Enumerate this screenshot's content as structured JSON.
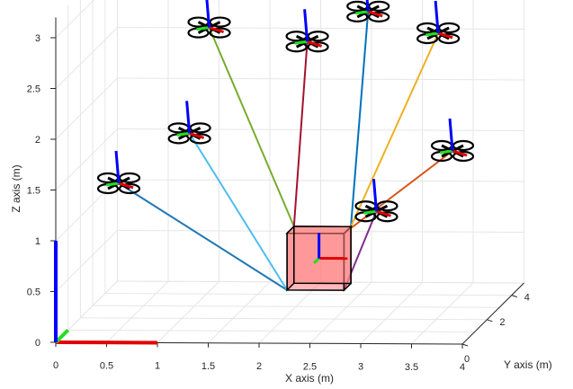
{
  "chart_data": {
    "type": "3d-scene",
    "title": "",
    "xlabel": "X axis (m)",
    "ylabel": "Y axis (m)",
    "zlabel": "Z axis (m)",
    "xlim": [
      0,
      4
    ],
    "ylim": [
      0,
      5
    ],
    "zlim": [
      0,
      3.2
    ],
    "grid": true,
    "x_ticks": [
      "0",
      "0.5",
      "1",
      "1.5",
      "2",
      "2.5",
      "3",
      "3.5",
      "4"
    ],
    "y_ticks": [
      "2",
      "4"
    ],
    "z_ticks": [
      "0",
      "0.5",
      "1",
      "1.5",
      "2",
      "2.5",
      "3"
    ],
    "payload": {
      "label": "",
      "x": 2.25,
      "y": 2.8,
      "z": 0.5,
      "color": "#ff8080"
    },
    "world_frame": {
      "x_color": "#e00000",
      "y_color": "#22dd22",
      "z_color": "#0000ff"
    },
    "drones": [
      {
        "id": 1,
        "x": 0.45,
        "y": 1.4,
        "z": 1.4,
        "tether_color": "#1f77b4"
      },
      {
        "id": 2,
        "x": 1.0,
        "y": 2.6,
        "z": 1.75,
        "tether_color": "#4dbeee"
      },
      {
        "id": 3,
        "x": 1.0,
        "y": 4.2,
        "z": 2.6,
        "tether_color": "#77ac30"
      },
      {
        "id": 4,
        "x": 2.05,
        "y": 3.5,
        "z": 2.55,
        "tether_color": "#a2142f"
      },
      {
        "id": 5,
        "x": 2.6,
        "y": 3.9,
        "z": 2.8,
        "tether_color": "#0072bd"
      },
      {
        "id": 6,
        "x": 3.35,
        "y": 3.4,
        "z": 2.65,
        "tether_color": "#edb120"
      },
      {
        "id": 7,
        "x": 3.6,
        "y": 2.5,
        "z": 1.6,
        "tether_color": "#d95319"
      },
      {
        "id": 8,
        "x": 2.9,
        "y": 2.1,
        "z": 1.05,
        "tether_color": "#7e2f8e"
      }
    ]
  }
}
